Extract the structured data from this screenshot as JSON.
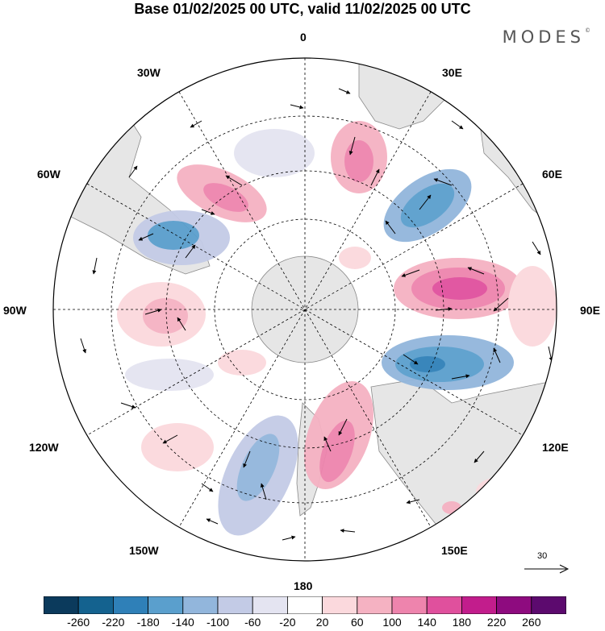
{
  "header": {
    "title": "Base 01/02/2025 00 UTC, valid 11/02/2025 00 UTC",
    "brand": "MODES",
    "brand_mark": "©"
  },
  "map": {
    "projection": "south-polar-stereographic",
    "longitude_labels": {
      "n0": "0",
      "e30": "30E",
      "e60": "60E",
      "e90": "90E",
      "e120": "120E",
      "e150": "150E",
      "s180": "180",
      "w150": "150W",
      "w120": "120W",
      "w90": "90W",
      "w60": "60W",
      "w30": "30W"
    },
    "reference_vector": {
      "value": "30"
    },
    "colors": {
      "land": "#e8e8e8",
      "coast": "#888888",
      "grid": "#000000"
    }
  },
  "colorbar": {
    "levels": [
      "-260",
      "-220",
      "-180",
      "-140",
      "-100",
      "-60",
      "-20",
      "20",
      "60",
      "100",
      "140",
      "180",
      "220",
      "260"
    ],
    "colors": [
      "#0b3a5c",
      "#14628f",
      "#2f80b8",
      "#5a9fcd",
      "#92b6dc",
      "#c3cbe6",
      "#e4e4f1",
      "#ffffff",
      "#fbd9dd",
      "#f5b2c2",
      "#ee84ad",
      "#e0509d",
      "#c21d8c",
      "#8e0b7f",
      "#5c0a6e"
    ]
  }
}
